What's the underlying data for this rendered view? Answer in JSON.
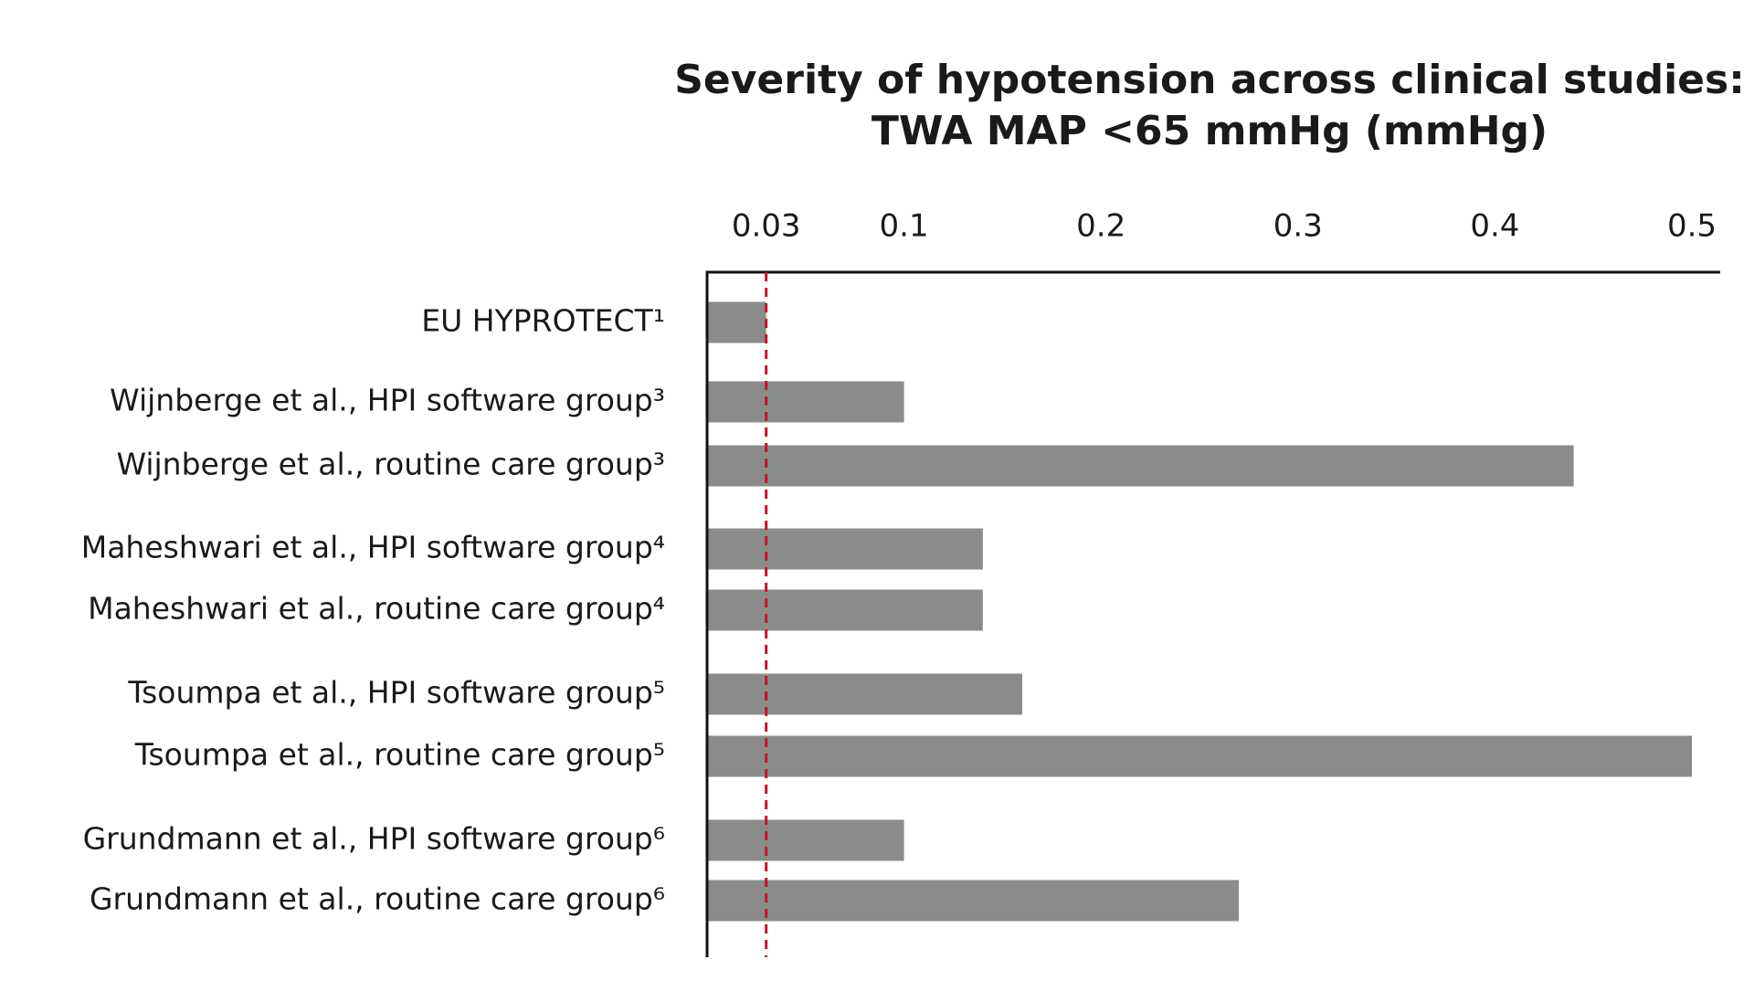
{
  "chart_data": {
    "type": "bar",
    "orientation": "horizontal",
    "title": "Severity of hypotension across clinical studies:",
    "subtitle": "TWA MAP <65 mmHg (mmHg)",
    "categories": [
      "EU HYPROTECT¹",
      "Wijnberge et al., HPI software group³",
      "Wijnberge et al., routine care group³",
      "Maheshwari et al., HPI software group⁴",
      "Maheshwari et al., routine care group⁴",
      "Tsoumpa et al., HPI software group⁵",
      "Tsoumpa et al., routine care group⁵",
      "Grundmann et al., HPI software group⁶",
      "Grundmann et al., routine care group⁶"
    ],
    "values": [
      0.03,
      0.1,
      0.44,
      0.14,
      0.14,
      0.16,
      0.5,
      0.1,
      0.27
    ],
    "color": "#8a8c8c",
    "xlim": [
      0,
      0.5
    ],
    "xticks": [
      0.03,
      0.1,
      0.2,
      0.3,
      0.4,
      0.5
    ],
    "reference_line": {
      "value": 0.03,
      "color": "#c8102e"
    }
  }
}
